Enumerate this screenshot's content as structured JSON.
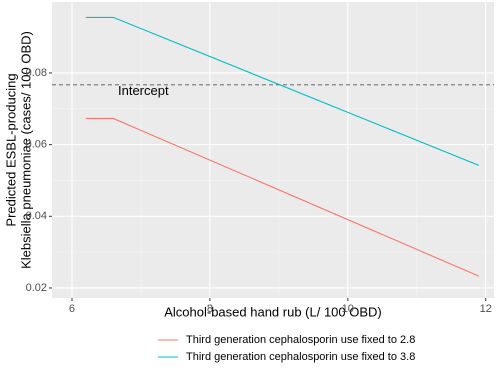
{
  "chart_data": {
    "type": "line",
    "x_label": "Alcohol-based hand rub (L/ 100 OBD)",
    "y_label": [
      "Predicted ESBL-producing",
      "Klebsiella pneumoniae (cases/ 100 OBD)"
    ],
    "x": [
      6.2,
      6.6,
      11.9
    ],
    "series": [
      {
        "name": "Third generation cephalosporin use fixed to 2.8",
        "color": "#F8766D",
        "values": [
          0.0673,
          0.0673,
          0.0233
        ]
      },
      {
        "name": "Third generation cephalosporin use fixed to 3.8",
        "color": "#00BFC4",
        "values": [
          0.0955,
          0.0955,
          0.0542
        ]
      }
    ],
    "hline": {
      "value": 0.0767,
      "label": "Intercept"
    },
    "xlim": [
      5.71,
      12.12
    ],
    "xticks": [
      6,
      8,
      10,
      12
    ],
    "ylim": [
      0.0172,
      0.0998
    ],
    "yticks": [
      0.02,
      0.04,
      0.06,
      0.08
    ],
    "grid": true,
    "legend": "bottom"
  }
}
